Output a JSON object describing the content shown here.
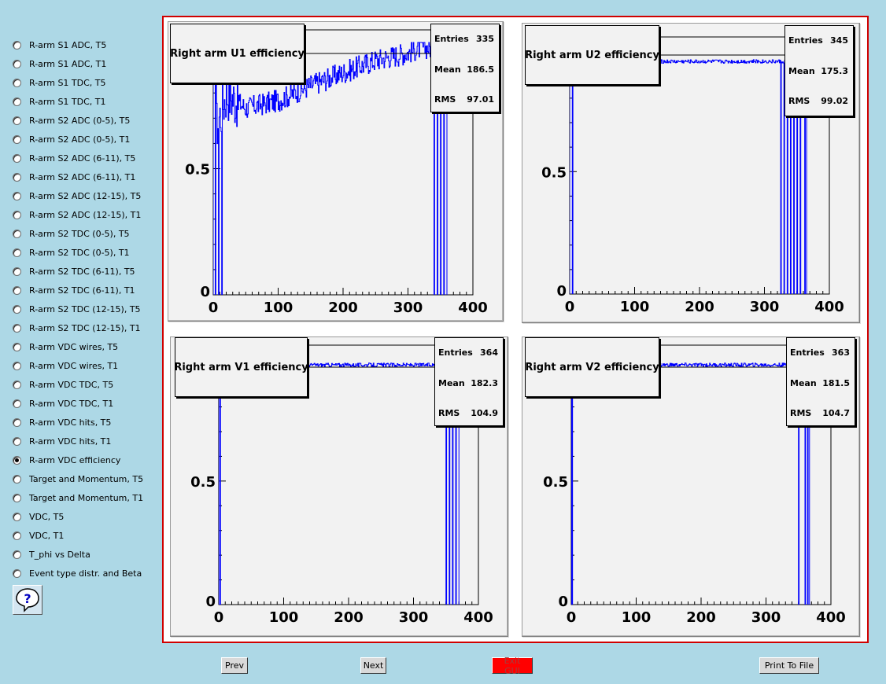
{
  "sidebar": {
    "items": [
      {
        "label": "R-arm S1 ADC, T5",
        "checked": false
      },
      {
        "label": "R-arm S1 ADC, T1",
        "checked": false
      },
      {
        "label": "R-arm S1 TDC, T5",
        "checked": false
      },
      {
        "label": "R-arm S1 TDC, T1",
        "checked": false
      },
      {
        "label": "R-arm S2 ADC (0-5), T5",
        "checked": false
      },
      {
        "label": "R-arm S2 ADC (0-5), T1",
        "checked": false
      },
      {
        "label": "R-arm S2 ADC (6-11), T5",
        "checked": false
      },
      {
        "label": "R-arm S2 ADC (6-11), T1",
        "checked": false
      },
      {
        "label": "R-arm S2 ADC (12-15), T5",
        "checked": false
      },
      {
        "label": "R-arm S2 ADC (12-15), T1",
        "checked": false
      },
      {
        "label": "R-arm S2 TDC (0-5), T5",
        "checked": false
      },
      {
        "label": "R-arm S2 TDC (0-5), T1",
        "checked": false
      },
      {
        "label": "R-arm S2 TDC (6-11), T5",
        "checked": false
      },
      {
        "label": "R-arm S2 TDC (6-11), T1",
        "checked": false
      },
      {
        "label": "R-arm S2 TDC (12-15), T5",
        "checked": false
      },
      {
        "label": "R-arm S2 TDC (12-15), T1",
        "checked": false
      },
      {
        "label": "R-arm VDC wires, T5",
        "checked": false
      },
      {
        "label": "R-arm VDC wires, T1",
        "checked": false
      },
      {
        "label": "R-arm VDC TDC, T5",
        "checked": false
      },
      {
        "label": "R-arm VDC TDC, T1",
        "checked": false
      },
      {
        "label": "R-arm VDC hits, T5",
        "checked": false
      },
      {
        "label": "R-arm VDC hits, T1",
        "checked": false
      },
      {
        "label": "R-arm VDC efficiency",
        "checked": true
      },
      {
        "label": "Target and Momentum, T5",
        "checked": false
      },
      {
        "label": "Target and Momentum, T1",
        "checked": false
      },
      {
        "label": "VDC, T5",
        "checked": false
      },
      {
        "label": "VDC, T1",
        "checked": false
      },
      {
        "label": "T_phi vs Delta",
        "checked": false
      },
      {
        "label": "Event type distr. and Beta",
        "checked": false
      }
    ],
    "help_icon": "question-mark-icon"
  },
  "buttons": {
    "prev": "Prev",
    "next": "Next",
    "exit": "Exit GUI",
    "print": "Print To File"
  },
  "colors": {
    "background": "#add8e6",
    "canvas_border": "#d00000",
    "histogram_line": "#0000ff",
    "exit_button": "#ff0000"
  },
  "chart_data": [
    {
      "type": "line",
      "title": "Right arm U1 efficiency",
      "stats": {
        "entries_label": "Entries",
        "entries": "335",
        "mean_label": "Mean",
        "mean": "186.5",
        "rms_label": "RMS",
        "rms": "97.01"
      },
      "xlim": [
        0,
        400
      ],
      "ylim": [
        0,
        1.05
      ],
      "x_ticks": [
        "0",
        "100",
        "200",
        "300",
        "400"
      ],
      "y_ticks": [
        "0",
        "0.5"
      ],
      "profile": "rising",
      "x_range": [
        0,
        360
      ],
      "approx_series": [
        {
          "x": 5,
          "y": 0.67
        },
        {
          "x": 20,
          "y": 0.8
        },
        {
          "x": 50,
          "y": 0.74
        },
        {
          "x": 100,
          "y": 0.77
        },
        {
          "x": 150,
          "y": 0.83
        },
        {
          "x": 200,
          "y": 0.88
        },
        {
          "x": 250,
          "y": 0.93
        },
        {
          "x": 300,
          "y": 0.96
        },
        {
          "x": 320,
          "y": 0.98
        }
      ],
      "dips": [
        3,
        8,
        13,
        340,
        345,
        350,
        355
      ]
    },
    {
      "type": "line",
      "title": "Right arm U2 efficiency",
      "stats": {
        "entries_label": "Entries",
        "entries": "345",
        "mean_label": "Mean",
        "mean": "175.3",
        "rms_label": "RMS",
        "rms": "99.02"
      },
      "xlim": [
        0,
        400
      ],
      "ylim": [
        0,
        1.05
      ],
      "x_ticks": [
        "0",
        "100",
        "200",
        "300",
        "400"
      ],
      "y_ticks": [
        "0",
        "0.5"
      ],
      "profile": "flat",
      "level": 0.95,
      "x_range": [
        0,
        365
      ],
      "dips": [
        4,
        325,
        330,
        335,
        340,
        345,
        350,
        355,
        362
      ]
    },
    {
      "type": "line",
      "title": "Right arm V1 efficiency",
      "stats": {
        "entries_label": "Entries",
        "entries": "364",
        "mean_label": "Mean",
        "mean": "182.3",
        "rms_label": "RMS",
        "rms": "104.9"
      },
      "xlim": [
        0,
        400
      ],
      "ylim": [
        0,
        1.05
      ],
      "x_ticks": [
        "0",
        "100",
        "200",
        "300",
        "400"
      ],
      "y_ticks": [
        "0",
        "0.5"
      ],
      "profile": "flat",
      "level": 0.97,
      "x_range": [
        0,
        370
      ],
      "dips": [
        1,
        2,
        350,
        355,
        360,
        365
      ]
    },
    {
      "type": "line",
      "title": "Right arm V2 efficiency",
      "stats": {
        "entries_label": "Entries",
        "entries": "363",
        "mean_label": "Mean",
        "mean": "181.5",
        "rms_label": "RMS",
        "rms": "104.7"
      },
      "xlim": [
        0,
        400
      ],
      "ylim": [
        0,
        1.05
      ],
      "x_ticks": [
        "0",
        "100",
        "200",
        "300",
        "400"
      ],
      "y_ticks": [
        "0",
        "0.5"
      ],
      "profile": "flat",
      "level": 0.97,
      "x_range": [
        0,
        368
      ],
      "dips": [
        1,
        350,
        360,
        364,
        367
      ]
    }
  ]
}
